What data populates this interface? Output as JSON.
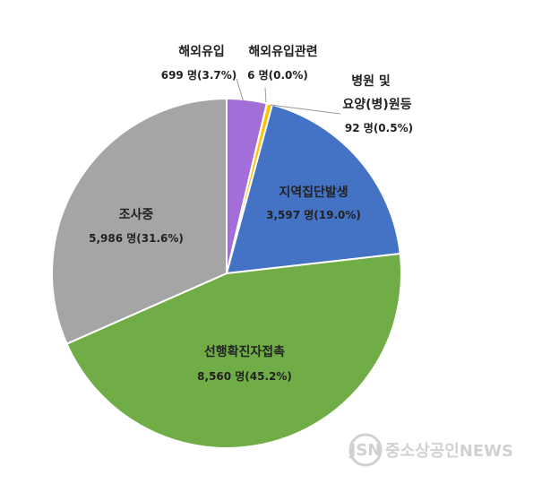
{
  "chart_data": {
    "type": "pie",
    "title": "",
    "slices": [
      {
        "name": "해외유입",
        "count": 699,
        "percent": 3.7,
        "value_text": "699 명(3.7%)",
        "color": "#a46ed8"
      },
      {
        "name": "해외유입관련",
        "count": 6,
        "percent": 0.0,
        "value_text": "6 명(0.0%)",
        "color": "#f0a030"
      },
      {
        "name_lines": [
          "병원 및",
          "요양(병)원등"
        ],
        "count": 92,
        "percent": 0.5,
        "value_text": "92 명(0.5%)",
        "color": "#ffc000"
      },
      {
        "name": "지역집단발생",
        "count": 3597,
        "percent": 19.0,
        "value_text": "3,597 명(19.0%)",
        "color": "#4472c4"
      },
      {
        "name": "선행확진자접촉",
        "count": 8560,
        "percent": 45.2,
        "value_text": "8,560 명(45.2%)",
        "color": "#70ad47"
      },
      {
        "name": "조사중",
        "count": 5986,
        "percent": 31.6,
        "value_text": "5,986 명(31.6%)",
        "color": "#a5a5a5"
      }
    ]
  },
  "watermark": {
    "logo_text": "JSN",
    "text": "중소상공인NEWS"
  }
}
